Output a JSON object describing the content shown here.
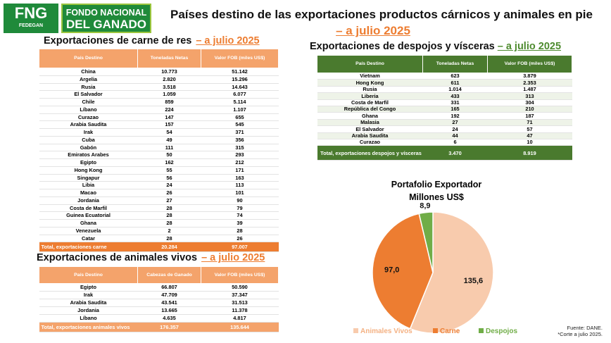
{
  "logo": {
    "fng": "FNG",
    "fedegan": "FEDEGAN",
    "name_line1": "FONDO NACIONAL",
    "name_line2": "DEL GANADO"
  },
  "header": {
    "title": "Países destino de las exportaciones productos cárnicos y animales en pie",
    "date": "– a julio 2025"
  },
  "beef": {
    "title": "Exportaciones de carne de res",
    "date": "– a julio 2025",
    "columns": [
      "País Destino",
      "Toneladas Netas",
      "Valor FOB (miles US$)"
    ],
    "rows": [
      [
        "China",
        "10.773",
        "51.142"
      ],
      [
        "Argelia",
        "2.820",
        "15.296"
      ],
      [
        "Rusia",
        "3.518",
        "14.643"
      ],
      [
        "El Salvador",
        "1.059",
        "6.077"
      ],
      [
        "Chile",
        "859",
        "5.114"
      ],
      [
        "Líbano",
        "224",
        "1.107"
      ],
      [
        "Curazao",
        "147",
        "655"
      ],
      [
        "Arabia Saudita",
        "157",
        "545"
      ],
      [
        "Irak",
        "54",
        "371"
      ],
      [
        "Cuba",
        "49",
        "356"
      ],
      [
        "Gabón",
        "111",
        "315"
      ],
      [
        "Emiratos Arabes",
        "50",
        "293"
      ],
      [
        "Egipto",
        "162",
        "212"
      ],
      [
        "Hong Kong",
        "55",
        "171"
      ],
      [
        "Singapur",
        "56",
        "163"
      ],
      [
        "Libia",
        "24",
        "113"
      ],
      [
        "Macao",
        "26",
        "101"
      ],
      [
        "Jordania",
        "27",
        "90"
      ],
      [
        "Costa de Marfil",
        "28",
        "79"
      ],
      [
        "Guinea Ecuatorial",
        "28",
        "74"
      ],
      [
        "Ghana",
        "28",
        "39"
      ],
      [
        "Venezuela",
        "2",
        "28"
      ],
      [
        "Catar",
        "28",
        "26"
      ]
    ],
    "total": [
      "Total, exportaciones carne",
      "20.284",
      "97.007"
    ]
  },
  "live": {
    "title": "Exportaciones de animales vivos",
    "date": "– a julio 2025",
    "columns": [
      "País Destino",
      "Cabezas de Ganado",
      "Valor FOB (miles US$)"
    ],
    "rows": [
      [
        "Egipto",
        "66.807",
        "50.590"
      ],
      [
        "Irak",
        "47.709",
        "37.347"
      ],
      [
        "Arabia Saudita",
        "43.541",
        "31.513"
      ],
      [
        "Jordania",
        "13.665",
        "11.378"
      ],
      [
        "Líbano",
        "4.635",
        "4.817"
      ]
    ],
    "total": [
      "Total,  exportaciones animales vivos",
      "176.357",
      "135.644"
    ]
  },
  "offal": {
    "title": "Exportaciones de despojos y vísceras",
    "date": "– a julio 2025",
    "columns": [
      "País Destino",
      "Toneladas Netas",
      "Valor FOB (miles US$)"
    ],
    "rows": [
      [
        "Vietnam",
        "623",
        "3.879"
      ],
      [
        "Hong Kong",
        "611",
        "2.353"
      ],
      [
        "Rusia",
        "1.014",
        "1.487"
      ],
      [
        "Liberia",
        "433",
        "313"
      ],
      [
        "Costa de Marfil",
        "331",
        "304"
      ],
      [
        "República del Congo",
        "165",
        "210"
      ],
      [
        "Ghana",
        "192",
        "187"
      ],
      [
        "Malasia",
        "27",
        "71"
      ],
      [
        "El Salvador",
        "24",
        "57"
      ],
      [
        "Arabia Saudita",
        "44",
        "47"
      ],
      [
        "Curazao",
        "6",
        "10"
      ]
    ],
    "total": [
      "Total, exportaciones despojos y  vísceras",
      "3.470",
      "8.919"
    ]
  },
  "chart_data": {
    "type": "pie",
    "title": "Portafolio Exportador",
    "subtitle": "Millones US$",
    "categories": [
      "Animales Vivos",
      "Carne",
      "Despojos"
    ],
    "values": [
      135.6,
      97.0,
      8.9
    ],
    "value_labels": [
      "135,6",
      "97,0",
      "8,9"
    ],
    "colors": [
      "#f8cbad",
      "#ed7d31",
      "#70ad47"
    ]
  },
  "footer": {
    "source": "Fuente: DANE.",
    "note": "*Corte a julio 2025."
  }
}
